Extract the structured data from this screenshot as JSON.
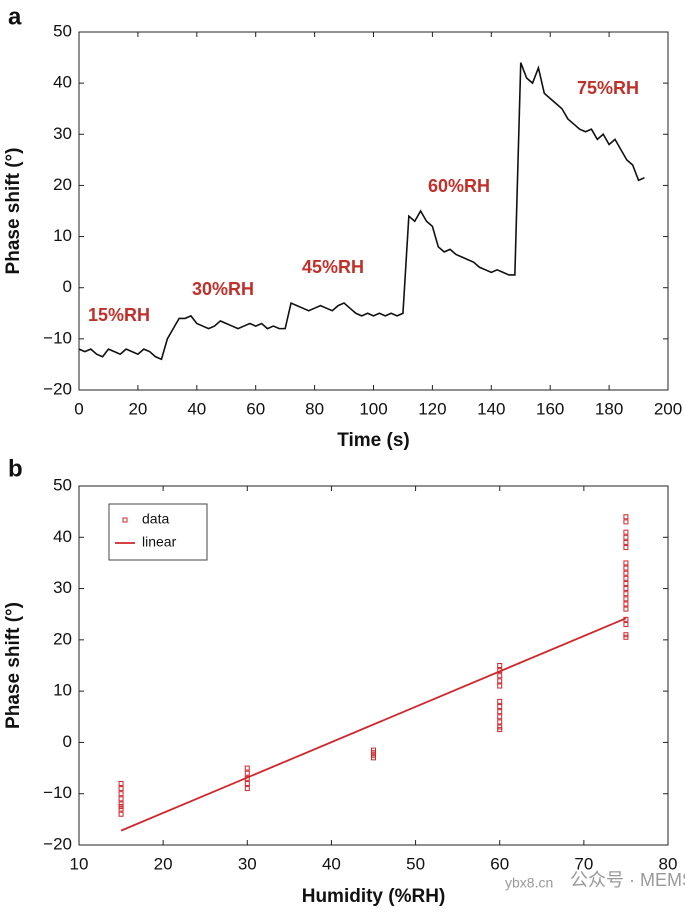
{
  "chart_data": [
    {
      "type": "line",
      "panel_label": "a",
      "xlabel": "Time (s)",
      "ylabel": "Phase shift (°)",
      "xlim": [
        0,
        200
      ],
      "xticks": [
        0,
        20,
        40,
        60,
        80,
        100,
        120,
        140,
        160,
        180,
        200
      ],
      "ylim": [
        -20,
        50
      ],
      "yticks": [
        {
          "value": -20,
          "label": "−20"
        },
        {
          "value": -10,
          "label": "−10"
        },
        0,
        10,
        20,
        30,
        40,
        50
      ],
      "annotations": [
        "15%RH",
        "30%RH",
        "45%RH",
        "60%RH",
        "75%RH"
      ],
      "series": [
        {
          "color": "#111111",
          "x": [
            0,
            2,
            4,
            6,
            8,
            10,
            12,
            14,
            16,
            18,
            20,
            22,
            24,
            26,
            28,
            30,
            32,
            34,
            36,
            38,
            40,
            42,
            44,
            46,
            48,
            50,
            52,
            54,
            56,
            58,
            60,
            62,
            64,
            66,
            68,
            70,
            72,
            74,
            76,
            78,
            80,
            82,
            84,
            86,
            88,
            90,
            92,
            94,
            96,
            98,
            100,
            102,
            104,
            106,
            108,
            110,
            112,
            114,
            116,
            118,
            120,
            122,
            124,
            126,
            128,
            130,
            132,
            134,
            136,
            138,
            140,
            142,
            144,
            146,
            148,
            150,
            152,
            154,
            156,
            158,
            160,
            162,
            164,
            166,
            168,
            170,
            172,
            174,
            176,
            178,
            180,
            182,
            184,
            186,
            188,
            190,
            192
          ],
          "values": [
            -12,
            -12.5,
            -12,
            -13,
            -13.5,
            -12,
            -12.5,
            -13,
            -12,
            -12.5,
            -13,
            -12,
            -12.5,
            -13.5,
            -14,
            -10,
            -8,
            -6,
            -6,
            -5.5,
            -7,
            -7.5,
            -8,
            -7.5,
            -6.5,
            -7,
            -7.5,
            -8,
            -7.5,
            -7,
            -7.5,
            -7,
            -8,
            -7.5,
            -8,
            -8,
            -3,
            -3.5,
            -4,
            -4.5,
            -4,
            -3.5,
            -4,
            -4.5,
            -3.5,
            -3,
            -4,
            -5,
            -5.5,
            -5,
            -5.5,
            -5,
            -5.5,
            -5,
            -5.5,
            -5,
            14,
            13,
            15,
            13,
            12,
            8,
            7,
            7.5,
            6.5,
            6,
            5.5,
            5,
            4,
            3.5,
            3,
            3.5,
            3,
            2.5,
            2.5,
            44,
            41,
            40,
            43,
            38,
            37,
            36,
            35,
            33,
            32,
            31,
            30.5,
            31,
            29,
            30,
            28,
            29,
            27,
            25,
            24,
            21,
            21.5
          ]
        }
      ]
    },
    {
      "type": "scatter",
      "panel_label": "b",
      "xlabel": "Humidity (%RH)",
      "ylabel": "Phase shift (°)",
      "xlim": [
        10,
        80
      ],
      "xticks": [
        10,
        20,
        30,
        40,
        50,
        60,
        70,
        80
      ],
      "ylim": [
        -20,
        50
      ],
      "yticks": [
        {
          "value": -20,
          "label": "−20"
        },
        {
          "value": -10,
          "label": "−10"
        },
        0,
        10,
        20,
        30,
        40,
        50
      ],
      "legend": "upper left",
      "series": [
        {
          "name": "data",
          "mode": "markers",
          "color": "#d0262b",
          "x": [
            15,
            15,
            15,
            15,
            15,
            15,
            15,
            15,
            30,
            30,
            30,
            30,
            30,
            45,
            45,
            45,
            45,
            60,
            60,
            60,
            60,
            60,
            60,
            60,
            60,
            60,
            60,
            60,
            60,
            75,
            75,
            75,
            75,
            75,
            75,
            75,
            75,
            75,
            75,
            75,
            75,
            75,
            75,
            75,
            75,
            75,
            75,
            75,
            75
          ],
          "values": [
            -8,
            -9,
            -10,
            -11,
            -12,
            -12.5,
            -13,
            -14,
            -5,
            -6,
            -7,
            -8,
            -9,
            -1.5,
            -2,
            -2.5,
            -3,
            15,
            14,
            13,
            12,
            11,
            8,
            7,
            6,
            5,
            4,
            3,
            2.5,
            44,
            43,
            41,
            40,
            39,
            38,
            35,
            34,
            33,
            32,
            31,
            30,
            29,
            28,
            27,
            26,
            24,
            23,
            21,
            20.5
          ]
        },
        {
          "name": "linear",
          "mode": "line",
          "color": "#d0262b",
          "x": [
            15,
            75
          ],
          "values": [
            -17.2,
            24.2
          ]
        }
      ]
    }
  ],
  "watermark": [
    "ybx8.cn",
    "公众号 · MEMS"
  ]
}
